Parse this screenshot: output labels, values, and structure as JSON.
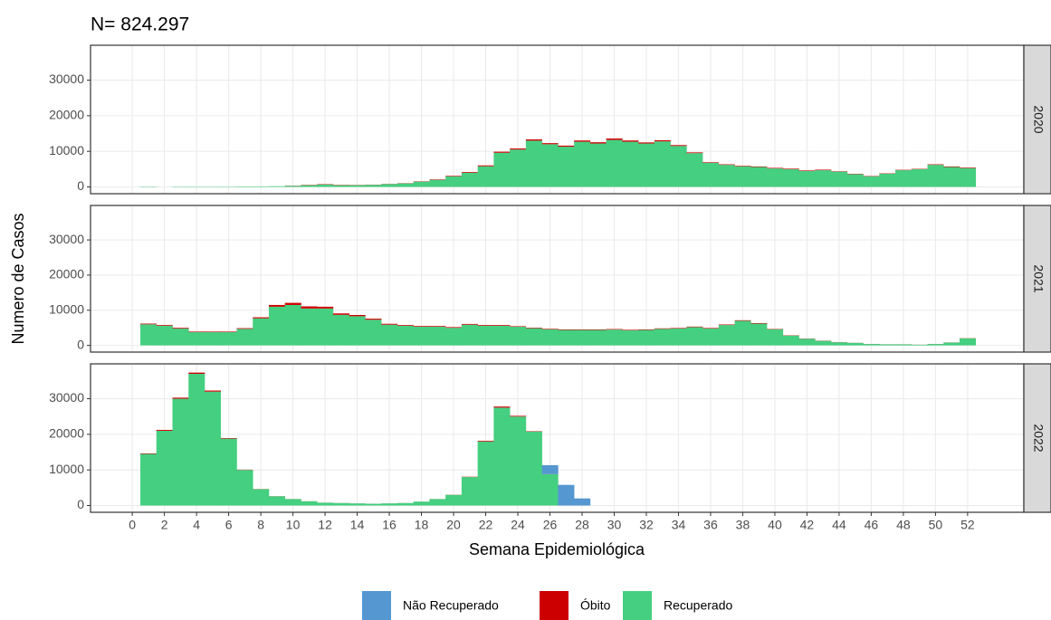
{
  "chart_data": {
    "type": "bar",
    "title": "N= 824.297",
    "x_label": "Semana Epidemiológica",
    "y_label": "Numero de Casos",
    "facets": [
      "2020",
      "2021",
      "2022"
    ],
    "x": [
      1,
      2,
      3,
      4,
      5,
      6,
      7,
      8,
      9,
      10,
      11,
      12,
      13,
      14,
      15,
      16,
      17,
      18,
      19,
      20,
      21,
      22,
      23,
      24,
      25,
      26,
      27,
      28,
      29,
      30,
      31,
      32,
      33,
      34,
      35,
      36,
      37,
      38,
      39,
      40,
      41,
      42,
      43,
      44,
      45,
      46,
      47,
      48,
      49,
      50,
      51,
      52
    ],
    "xlim": [
      -2.6,
      55.5
    ],
    "xticks": [
      0,
      2,
      4,
      6,
      8,
      10,
      12,
      14,
      16,
      18,
      20,
      22,
      24,
      26,
      28,
      30,
      32,
      34,
      36,
      38,
      40,
      42,
      44,
      46,
      48,
      50,
      52
    ],
    "ylim": [
      -1900,
      39800
    ],
    "yticks": [
      0,
      10000,
      20000,
      30000
    ],
    "grid": true,
    "stacked": true,
    "legend": "bottom",
    "series": [
      {
        "name": "Não Recuperado",
        "color": "#5597d0",
        "values": [
          [
            0,
            0,
            0,
            0,
            0,
            0,
            0,
            0,
            0,
            0,
            0,
            0,
            0,
            0,
            0,
            0,
            0,
            0,
            0,
            0,
            0,
            0,
            0,
            0,
            0,
            0,
            0,
            0,
            0,
            0,
            0,
            0,
            0,
            0,
            0,
            0,
            0,
            0,
            0,
            0,
            0,
            0,
            0,
            0,
            0,
            0,
            0,
            0,
            0,
            0,
            0,
            0
          ],
          [
            0,
            0,
            0,
            0,
            0,
            0,
            0,
            0,
            0,
            0,
            0,
            0,
            0,
            0,
            0,
            0,
            0,
            0,
            0,
            0,
            0,
            0,
            0,
            0,
            0,
            0,
            0,
            0,
            0,
            0,
            0,
            0,
            0,
            0,
            0,
            0,
            0,
            0,
            0,
            0,
            0,
            0,
            0,
            0,
            0,
            0,
            0,
            0,
            0,
            0,
            0,
            0
          ],
          [
            0,
            0,
            0,
            0,
            0,
            0,
            0,
            0,
            0,
            0,
            0,
            0,
            0,
            0,
            0,
            0,
            0,
            0,
            0,
            0,
            0,
            0,
            0,
            0,
            0,
            2500,
            5800,
            2000,
            null,
            null,
            null,
            null,
            null,
            null,
            null,
            null,
            null,
            null,
            null,
            null,
            null,
            null,
            null,
            null,
            null,
            null,
            null,
            null,
            null,
            null,
            null,
            null
          ]
        ]
      },
      {
        "name": "Óbito",
        "color": "#cc0000",
        "values": [
          [
            0,
            0,
            0,
            0,
            0,
            0,
            0,
            0,
            0,
            50,
            80,
            100,
            80,
            60,
            50,
            50,
            60,
            80,
            120,
            150,
            200,
            250,
            300,
            300,
            350,
            300,
            300,
            350,
            350,
            400,
            350,
            300,
            300,
            250,
            200,
            150,
            150,
            150,
            150,
            150,
            150,
            150,
            150,
            100,
            100,
            100,
            100,
            100,
            100,
            150,
            150,
            150
          ],
          [
            200,
            200,
            200,
            150,
            150,
            150,
            200,
            300,
            500,
            600,
            600,
            500,
            400,
            350,
            300,
            250,
            200,
            200,
            200,
            200,
            200,
            200,
            200,
            150,
            150,
            150,
            150,
            150,
            150,
            150,
            150,
            150,
            150,
            150,
            150,
            150,
            150,
            150,
            150,
            100,
            80,
            60,
            50,
            40,
            30,
            20,
            20,
            20,
            20,
            20,
            30,
            50
          ],
          [
            150,
            250,
            300,
            350,
            300,
            150,
            80,
            40,
            30,
            20,
            15,
            10,
            10,
            10,
            10,
            10,
            10,
            10,
            20,
            30,
            80,
            200,
            300,
            200,
            100,
            30,
            0,
            0,
            null,
            null,
            null,
            null,
            null,
            null,
            null,
            null,
            null,
            null,
            null,
            null,
            null,
            null,
            null,
            null,
            null,
            null,
            null,
            null,
            null,
            null,
            null,
            null
          ]
        ]
      },
      {
        "name": "Recuperado",
        "color": "#45cf80",
        "values": [
          [
            100,
            0,
            100,
            100,
            100,
            100,
            150,
            150,
            200,
            300,
            500,
            700,
            500,
            500,
            600,
            800,
            1000,
            1500,
            2000,
            3000,
            4000,
            5800,
            9600,
            10500,
            13000,
            12000,
            11300,
            12700,
            12200,
            13200,
            12700,
            12200,
            12800,
            11500,
            9500,
            6800,
            6200,
            5800,
            5600,
            5200,
            5000,
            4500,
            4700,
            4300,
            3600,
            3000,
            3700,
            4700,
            5000,
            6200,
            5600,
            5300
          ],
          [
            6000,
            5600,
            4800,
            3800,
            3800,
            3800,
            4700,
            7700,
            11000,
            11500,
            10500,
            10500,
            8700,
            8300,
            7300,
            5900,
            5600,
            5300,
            5300,
            5000,
            5900,
            5600,
            5600,
            5300,
            4900,
            4600,
            4400,
            4400,
            4400,
            4500,
            4300,
            4400,
            4700,
            4800,
            5200,
            4800,
            5800,
            7000,
            6200,
            4600,
            2800,
            1900,
            1300,
            900,
            700,
            400,
            300,
            300,
            200,
            400,
            800,
            2000
          ],
          [
            14500,
            21000,
            30000,
            37000,
            32000,
            18800,
            10000,
            4600,
            2600,
            1800,
            1200,
            800,
            700,
            600,
            500,
            600,
            700,
            1100,
            1800,
            3000,
            8000,
            18000,
            27500,
            25000,
            20800,
            8800,
            0,
            0,
            null,
            null,
            null,
            null,
            null,
            null,
            null,
            null,
            null,
            null,
            null,
            null,
            null,
            null,
            null,
            null,
            null,
            null,
            null,
            null,
            null,
            null,
            null,
            null
          ]
        ]
      }
    ]
  }
}
